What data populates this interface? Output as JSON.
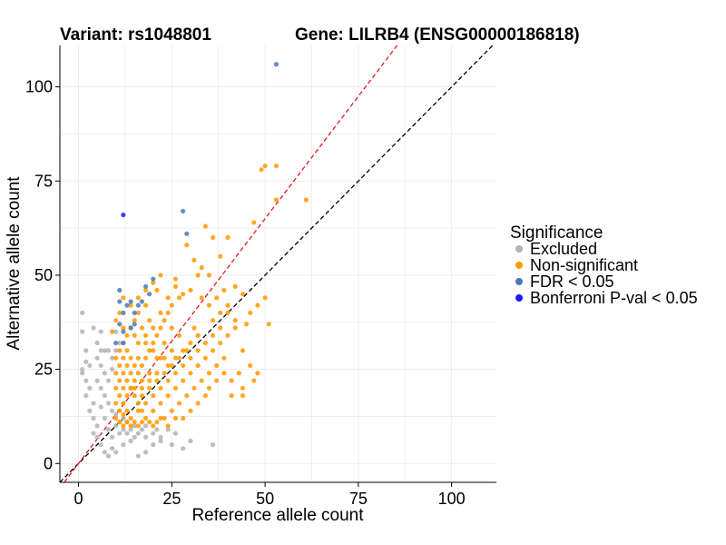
{
  "chart_data": {
    "type": "scatter",
    "title_left": "Variant: rs1048801",
    "title_right": "Gene: LILRB4 (ENSG00000186818)",
    "xlabel": "Reference allele count",
    "ylabel": "Alternative allele count",
    "xlim": [
      -5,
      112
    ],
    "ylim": [
      -5,
      111
    ],
    "xticks": [
      0,
      25,
      50,
      75,
      100
    ],
    "yticks": [
      0,
      25,
      50,
      75,
      100
    ],
    "xtick_labels": [
      "0",
      "25",
      "50",
      "75",
      "100"
    ],
    "ytick_labels": [
      "0",
      "25",
      "50",
      "75",
      "100"
    ],
    "grid": true,
    "reference_lines": [
      {
        "name": "identity",
        "slope": 1,
        "intercept": 0,
        "color": "#000000",
        "dash": true
      },
      {
        "name": "fitted",
        "slope": 1.3,
        "intercept": 0,
        "color": "#e41a1c",
        "dash": true
      }
    ],
    "legend": {
      "title": "Significance",
      "position": "right",
      "entries": [
        {
          "label": "Excluded",
          "color": "#b3b3b3"
        },
        {
          "label": "Non-significant",
          "color": "#ff9900"
        },
        {
          "label": "FDR < 0.05",
          "color": "#4a7ab5"
        },
        {
          "label": "Bonferroni P-val < 0.05",
          "color": "#1a1aff"
        }
      ]
    },
    "series": [
      {
        "name": "Excluded",
        "color": "#b3b3b3",
        "points": [
          [
            1,
            40
          ],
          [
            1,
            35
          ],
          [
            2,
            30
          ],
          [
            2,
            27
          ],
          [
            1,
            25
          ],
          [
            1,
            24
          ],
          [
            2,
            22
          ],
          [
            3,
            20
          ],
          [
            2,
            18
          ],
          [
            4,
            16
          ],
          [
            3,
            14
          ],
          [
            4,
            12
          ],
          [
            5,
            10
          ],
          [
            4,
            8
          ],
          [
            5,
            7
          ],
          [
            6,
            5
          ],
          [
            7,
            3
          ],
          [
            8,
            2
          ],
          [
            9,
            4
          ],
          [
            10,
            3
          ],
          [
            12,
            5
          ],
          [
            14,
            6
          ],
          [
            16,
            2
          ],
          [
            18,
            3
          ],
          [
            20,
            5
          ],
          [
            22,
            6
          ],
          [
            25,
            5
          ],
          [
            28,
            4
          ],
          [
            30,
            6
          ],
          [
            36,
            5
          ],
          [
            5,
            28
          ],
          [
            5,
            32
          ],
          [
            6,
            35
          ],
          [
            7,
            30
          ],
          [
            4,
            36
          ],
          [
            6,
            26
          ],
          [
            3,
            26
          ],
          [
            6,
            15
          ],
          [
            7,
            12
          ],
          [
            8,
            9
          ],
          [
            9,
            7
          ],
          [
            10,
            10
          ],
          [
            11,
            8
          ],
          [
            12,
            9
          ],
          [
            13,
            8
          ],
          [
            14,
            9
          ],
          [
            15,
            7
          ],
          [
            16,
            8
          ],
          [
            17,
            9
          ],
          [
            18,
            7
          ],
          [
            20,
            8
          ],
          [
            22,
            7
          ],
          [
            24,
            9
          ],
          [
            26,
            8
          ],
          [
            6,
            20
          ],
          [
            7,
            18
          ],
          [
            8,
            16
          ],
          [
            9,
            14
          ],
          [
            10,
            13
          ],
          [
            8,
            22
          ],
          [
            7,
            24
          ],
          [
            9,
            25
          ],
          [
            9,
            28
          ],
          [
            8,
            30
          ],
          [
            10,
            30
          ],
          [
            11,
            32
          ],
          [
            10,
            35
          ],
          [
            11,
            11
          ],
          [
            12,
            12
          ],
          [
            13,
            11
          ],
          [
            15,
            10
          ],
          [
            18,
            10
          ],
          [
            21,
            9
          ],
          [
            5,
            22
          ],
          [
            6,
            30
          ]
        ]
      },
      {
        "name": "Non-significant",
        "color": "#ff9900",
        "points": [
          [
            50,
            79
          ],
          [
            49,
            78
          ],
          [
            53,
            79
          ],
          [
            53,
            70
          ],
          [
            61,
            70
          ],
          [
            47,
            64
          ],
          [
            51,
            37
          ],
          [
            42,
            47
          ],
          [
            45,
            37
          ],
          [
            34,
            63
          ],
          [
            36,
            60
          ],
          [
            44,
            45
          ],
          [
            38,
            55
          ],
          [
            32,
            50
          ],
          [
            29,
            58
          ],
          [
            26,
            47
          ],
          [
            28,
            45
          ],
          [
            30,
            46
          ],
          [
            33,
            44
          ],
          [
            35,
            42
          ],
          [
            40,
            40
          ],
          [
            42,
            38
          ],
          [
            38,
            36
          ],
          [
            36,
            34
          ],
          [
            34,
            32
          ],
          [
            32,
            30
          ],
          [
            30,
            28
          ],
          [
            28,
            26
          ],
          [
            26,
            24
          ],
          [
            24,
            22
          ],
          [
            22,
            20
          ],
          [
            20,
            18
          ],
          [
            18,
            16
          ],
          [
            16,
            14
          ],
          [
            14,
            12
          ],
          [
            12,
            10
          ],
          [
            10,
            12
          ],
          [
            11,
            14
          ],
          [
            12,
            16
          ],
          [
            13,
            18
          ],
          [
            14,
            20
          ],
          [
            15,
            22
          ],
          [
            16,
            24
          ],
          [
            17,
            26
          ],
          [
            18,
            28
          ],
          [
            19,
            30
          ],
          [
            20,
            32
          ],
          [
            21,
            34
          ],
          [
            22,
            36
          ],
          [
            23,
            38
          ],
          [
            24,
            40
          ],
          [
            25,
            42
          ],
          [
            27,
            44
          ],
          [
            26,
            49
          ],
          [
            21,
            46
          ],
          [
            18,
            42
          ],
          [
            16,
            40
          ],
          [
            15,
            38
          ],
          [
            14,
            36
          ],
          [
            13,
            34
          ],
          [
            12,
            32
          ],
          [
            11,
            30
          ],
          [
            10,
            28
          ],
          [
            11,
            26
          ],
          [
            12,
            24
          ],
          [
            13,
            22
          ],
          [
            14,
            20
          ],
          [
            15,
            18
          ],
          [
            16,
            16
          ],
          [
            17,
            14
          ],
          [
            18,
            12
          ],
          [
            20,
            14
          ],
          [
            22,
            16
          ],
          [
            24,
            18
          ],
          [
            26,
            20
          ],
          [
            28,
            22
          ],
          [
            30,
            24
          ],
          [
            32,
            26
          ],
          [
            34,
            28
          ],
          [
            36,
            30
          ],
          [
            38,
            32
          ],
          [
            40,
            34
          ],
          [
            42,
            36
          ],
          [
            44,
            30
          ],
          [
            46,
            26
          ],
          [
            41,
            22
          ],
          [
            43,
            24
          ],
          [
            39,
            28
          ],
          [
            37,
            26
          ],
          [
            35,
            24
          ],
          [
            33,
            22
          ],
          [
            31,
            20
          ],
          [
            29,
            18
          ],
          [
            27,
            16
          ],
          [
            25,
            14
          ],
          [
            23,
            12
          ],
          [
            21,
            11
          ],
          [
            19,
            11
          ],
          [
            17,
            11
          ],
          [
            15,
            11
          ],
          [
            13,
            11
          ],
          [
            11,
            11
          ],
          [
            10,
            16
          ],
          [
            10,
            20
          ],
          [
            10,
            24
          ],
          [
            12,
            20
          ],
          [
            14,
            24
          ],
          [
            16,
            28
          ],
          [
            18,
            32
          ],
          [
            20,
            36
          ],
          [
            22,
            40
          ],
          [
            24,
            44
          ],
          [
            19,
            38
          ],
          [
            17,
            36
          ],
          [
            15,
            34
          ],
          [
            13,
            30
          ],
          [
            12,
            28
          ],
          [
            14,
            28
          ],
          [
            16,
            32
          ],
          [
            18,
            34
          ],
          [
            20,
            30
          ],
          [
            22,
            28
          ],
          [
            24,
            26
          ],
          [
            26,
            28
          ],
          [
            28,
            30
          ],
          [
            30,
            32
          ],
          [
            32,
            34
          ],
          [
            25,
            30
          ],
          [
            23,
            32
          ],
          [
            21,
            28
          ],
          [
            19,
            24
          ],
          [
            17,
            22
          ],
          [
            15,
            26
          ],
          [
            13,
            26
          ],
          [
            17,
            18
          ],
          [
            19,
            20
          ],
          [
            21,
            22
          ],
          [
            23,
            24
          ],
          [
            25,
            26
          ],
          [
            27,
            28
          ],
          [
            29,
            30
          ],
          [
            31,
            36
          ],
          [
            27,
            34
          ],
          [
            25,
            36
          ],
          [
            23,
            28
          ],
          [
            21,
            24
          ],
          [
            19,
            22
          ],
          [
            17,
            20
          ],
          [
            15,
            20
          ],
          [
            13,
            14
          ],
          [
            11,
            18
          ],
          [
            11,
            22
          ],
          [
            12,
            36
          ],
          [
            10,
            38
          ],
          [
            9,
            35
          ],
          [
            11,
            40
          ],
          [
            12,
            44
          ],
          [
            14,
            42
          ],
          [
            16,
            44
          ],
          [
            18,
            46
          ],
          [
            20,
            48
          ],
          [
            22,
            50
          ],
          [
            35,
            20
          ],
          [
            37,
            22
          ],
          [
            39,
            24
          ],
          [
            41,
            18
          ],
          [
            44,
            18
          ],
          [
            47,
            22
          ],
          [
            48,
            24
          ],
          [
            44,
            20
          ],
          [
            30,
            14
          ],
          [
            32,
            16
          ],
          [
            34,
            18
          ],
          [
            28,
            12
          ],
          [
            26,
            12
          ],
          [
            24,
            10
          ],
          [
            22,
            12
          ],
          [
            20,
            10
          ],
          [
            16,
            10
          ],
          [
            14,
            10
          ],
          [
            12,
            13
          ],
          [
            36,
            38
          ],
          [
            38,
            40
          ],
          [
            40,
            42
          ],
          [
            46,
            40
          ],
          [
            48,
            42
          ],
          [
            50,
            44
          ],
          [
            39,
            46
          ],
          [
            37,
            44
          ],
          [
            35,
            50
          ],
          [
            33,
            52
          ],
          [
            31,
            54
          ],
          [
            40,
            60
          ]
        ]
      },
      {
        "name": "FDR < 0.05",
        "color": "#4a7ab5",
        "points": [
          [
            53,
            106
          ],
          [
            28,
            67
          ],
          [
            29,
            61
          ],
          [
            20,
            49
          ],
          [
            18,
            47
          ],
          [
            19,
            45
          ],
          [
            17,
            43
          ],
          [
            16,
            42
          ],
          [
            15,
            40
          ],
          [
            14,
            43
          ],
          [
            13,
            42
          ],
          [
            11,
            46
          ],
          [
            11,
            43
          ],
          [
            12,
            40
          ],
          [
            11,
            37
          ],
          [
            12,
            35
          ],
          [
            10,
            32
          ],
          [
            12,
            32
          ],
          [
            14,
            36
          ],
          [
            15,
            37
          ]
        ]
      },
      {
        "name": "Bonferroni P-val < 0.05",
        "color": "#1a1aff",
        "points": [
          [
            12,
            66
          ]
        ]
      }
    ]
  }
}
